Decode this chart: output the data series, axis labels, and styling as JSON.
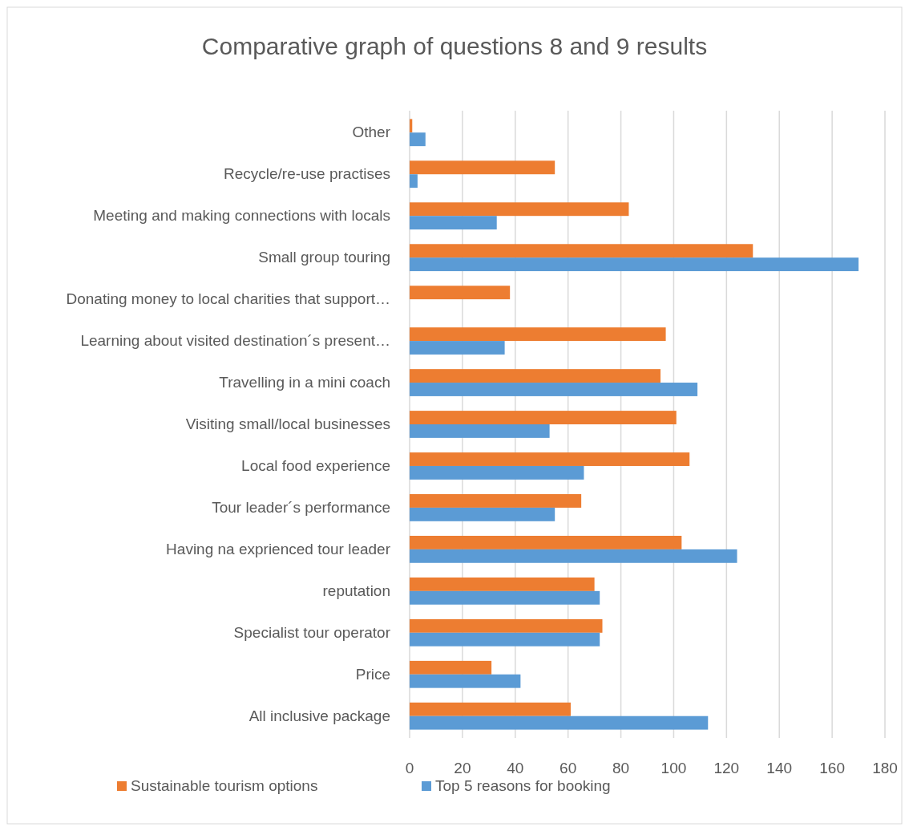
{
  "chart_data": {
    "type": "bar",
    "orientation": "horizontal",
    "title": "Comparative graph of questions 8 and 9 results",
    "categories": [
      "Other",
      "Recycle/re-use practises",
      "Meeting and making connections with locals",
      "Small group touring",
      "Donating money to local charities that support…",
      "Learning about visited destination´s present…",
      "Travelling in a mini coach",
      "Visiting small/local businesses",
      "Local food experience",
      "Tour leader´s performance",
      "Having na exprienced tour leader",
      "reputation",
      "Specialist tour operator",
      "Price",
      "All inclusive package"
    ],
    "series": [
      {
        "name": "Sustainable tourism options",
        "color": "#ed7d31",
        "values": [
          1,
          55,
          83,
          130,
          38,
          97,
          95,
          101,
          106,
          65,
          103,
          70,
          73,
          31,
          61
        ]
      },
      {
        "name": "Top 5 reasons for booking",
        "color": "#5b9bd5",
        "values": [
          6,
          3,
          33,
          170,
          0,
          36,
          109,
          53,
          66,
          55,
          124,
          72,
          72,
          42,
          113
        ]
      }
    ],
    "xlim": [
      0,
      180
    ],
    "xticks": [
      0,
      20,
      40,
      60,
      80,
      100,
      120,
      140,
      160,
      180
    ],
    "grid": "x",
    "legend": "bottom"
  }
}
